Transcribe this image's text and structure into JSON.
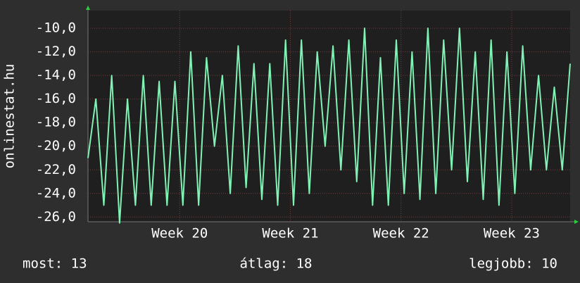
{
  "chart_data": {
    "type": "line",
    "y_axis_label": "onlinestat.hu",
    "x": [
      0,
      0.5,
      1,
      1.5,
      2,
      2.5,
      3,
      3.5,
      4,
      4.5,
      5,
      5.5,
      6,
      6.5,
      7,
      7.5,
      8,
      8.5,
      9,
      9.5,
      10,
      10.5,
      11,
      11.5,
      12,
      12.5,
      13,
      13.5,
      14,
      14.5,
      15,
      15.5,
      16,
      16.5,
      17,
      17.5,
      18,
      18.5,
      19,
      19.5,
      20,
      20.5,
      21,
      21.5,
      22,
      22.5,
      23,
      23.5,
      24,
      24.5,
      25,
      25.5,
      26,
      26.5,
      27,
      27.5,
      28,
      28.5,
      29,
      29.5,
      30,
      30.5
    ],
    "series": [
      {
        "color": "#7ff2b4",
        "values": [
          -21,
          -16,
          -25,
          -14,
          -26.5,
          -16,
          -25,
          -14,
          -25,
          -14.5,
          -25,
          -14.5,
          -25,
          -12,
          -25,
          -12.5,
          -20,
          -14,
          -24,
          -11.5,
          -23.5,
          -13,
          -24.5,
          -13,
          -25,
          -11,
          -25,
          -11,
          -24,
          -12,
          -20,
          -11.5,
          -22,
          -11,
          -23,
          -10,
          -25,
          -12.5,
          -25,
          -11,
          -24,
          -12,
          -24.5,
          -10,
          -24,
          -11,
          -22,
          -10,
          -23,
          -12,
          -24.5,
          -11,
          -25,
          -12,
          -24,
          -11.5,
          -22,
          -14,
          -22,
          -15,
          -22,
          -13
        ]
      }
    ],
    "xlim": [
      0,
      30.5
    ],
    "xticks": [
      {
        "value": 5.8,
        "label": "Week 20"
      },
      {
        "value": 12.8,
        "label": "Week 21"
      },
      {
        "value": 19.8,
        "label": "Week 22"
      },
      {
        "value": 26.8,
        "label": "Week 23"
      }
    ],
    "ylim": [
      -26.4,
      -8.5
    ],
    "yticks": [
      {
        "value": -26,
        "label": "-26,0"
      },
      {
        "value": -24,
        "label": "-24,0"
      },
      {
        "value": -22,
        "label": "-22,0"
      },
      {
        "value": -20,
        "label": "-20,0"
      },
      {
        "value": -18,
        "label": "-18,0"
      },
      {
        "value": -16,
        "label": "-16,0"
      },
      {
        "value": -14,
        "label": "-14,0"
      },
      {
        "value": -12,
        "label": "-12,0"
      },
      {
        "value": -10,
        "label": "-10,0"
      }
    ],
    "grid": true,
    "stats": [
      "most: 13",
      "átlag: 18",
      "legjobb: 10"
    ]
  }
}
